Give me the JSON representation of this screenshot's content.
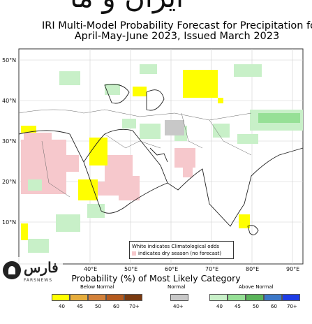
{
  "title": {
    "line1": "IRI Multi-Model Probability Forecast for Precipitation for",
    "line2": "April-May-June 2023, Issued March 2023"
  },
  "map": {
    "lat_labels": [
      "50°N",
      "40°N",
      "30°N",
      "20°N",
      "10°N",
      "0°"
    ],
    "lon_labels": [
      "40°E",
      "50°E",
      "60°E",
      "70°E",
      "80°E",
      "90°E"
    ],
    "region": "Middle East and South Asia",
    "land_color": "#ffffff",
    "ocean_color": "#ffffff",
    "grid_color": "#c8c8c8"
  },
  "note": {
    "line1": "White indicates Climatological odds",
    "line2": "indicates dry season (no forecast)",
    "dry_color": "#f6c8cc"
  },
  "legend": {
    "title": "Probability (%) of Most Likely Category",
    "below": {
      "label": "Below Normal",
      "colors": [
        "#ffff00",
        "#e6ad3c",
        "#d38139",
        "#b45a1e",
        "#7a3a10"
      ],
      "ticks": [
        "40",
        "45",
        "50",
        "60",
        "70+"
      ]
    },
    "normal": {
      "label": "Normal",
      "colors": [
        "#c8c8c8"
      ],
      "ticks": [
        "40+"
      ]
    },
    "above": {
      "label": "Above Normal",
      "colors": [
        "#c8f0c8",
        "#96e096",
        "#5ab45a",
        "#3c78c8",
        "#1e3ce6"
      ],
      "ticks": [
        "40",
        "45",
        "50",
        "60",
        "70+"
      ]
    }
  },
  "watermark": {
    "brand": "فارس",
    "sub": "FARSNEWS"
  }
}
